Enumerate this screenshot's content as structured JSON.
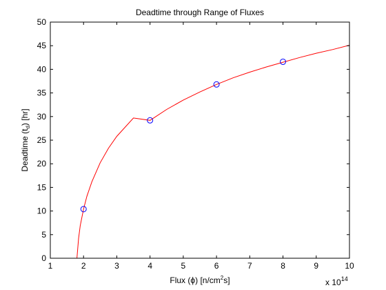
{
  "chart_data": {
    "type": "line",
    "title": "Deadtime through Range of Fluxes",
    "xlabel": {
      "prefix": "Flux (",
      "symbol": "ϕ",
      "mid": ") [n/cm",
      "sup": "2",
      "suffix": "s]"
    },
    "ylabel": {
      "prefix": "Deadtime (t",
      "sub": "d",
      "suffix": ") [hr]"
    },
    "x_multiplier": {
      "base": "x 10",
      "exponent": "14"
    },
    "xlim": [
      1,
      10
    ],
    "ylim": [
      0,
      50
    ],
    "xticks": [
      1,
      2,
      3,
      4,
      5,
      6,
      7,
      8,
      9,
      10
    ],
    "yticks": [
      0,
      5,
      10,
      15,
      20,
      25,
      30,
      35,
      40,
      45,
      50
    ],
    "grid": false,
    "series": [
      {
        "style": "line",
        "color": "#ff0000",
        "x": [
          1.8,
          1.85,
          1.9,
          2.0,
          2.1,
          2.25,
          2.5,
          2.75,
          3.0,
          3.5,
          4.0,
          4.5,
          5.0,
          5.5,
          6.0,
          6.5,
          7.0,
          7.5,
          8.0,
          8.5,
          9.0,
          9.5,
          10.0
        ],
        "y": [
          0,
          4.2,
          6.9,
          10.4,
          13.1,
          16.2,
          20.2,
          23.3,
          25.8,
          29.7,
          29.2,
          31.5,
          33.5,
          35.2,
          36.8,
          38.2,
          39.4,
          40.5,
          41.5,
          42.5,
          43.4,
          44.2,
          45.1
        ]
      },
      {
        "style": "markers",
        "marker": "circle",
        "color": "#0000ff",
        "x": [
          2,
          4,
          6,
          8
        ],
        "y": [
          10.4,
          29.2,
          36.8,
          41.6
        ]
      }
    ]
  }
}
